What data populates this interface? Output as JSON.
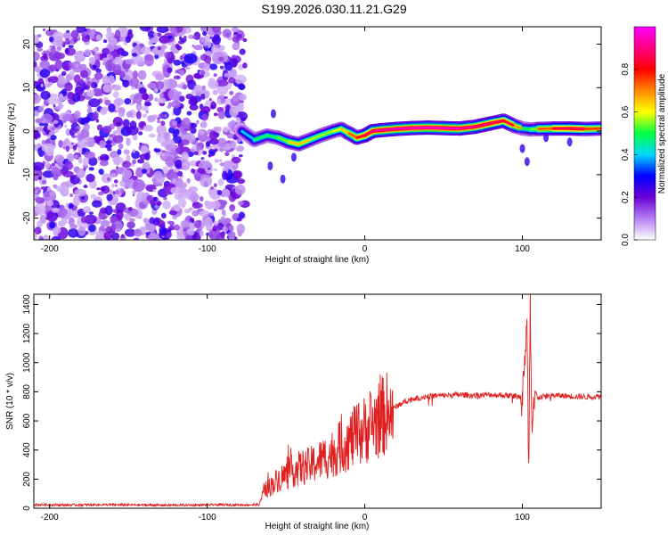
{
  "title": "S199.2026.030.11.21.G29",
  "chart_data": [
    {
      "type": "heatmap",
      "title": "",
      "xlabel": "Height of straight line (km)",
      "ylabel": "Frequency (Hz)",
      "xlim": [
        -210,
        150
      ],
      "ylim": [
        -25,
        24
      ],
      "xticks": [
        -200,
        -100,
        0,
        100
      ],
      "yticks": [
        -20,
        -10,
        0,
        10,
        20
      ],
      "xtick_labels": [
        "-200",
        "-100",
        "0",
        "100"
      ],
      "ytick_labels": [
        "-20",
        "-10",
        "0",
        "10",
        "20"
      ],
      "noise_region_x": [
        -210,
        -76
      ],
      "ridge": {
        "x": [
          -78,
          -70,
          -62,
          -55,
          -48,
          -42,
          -35,
          -28,
          -20,
          -15,
          -10,
          -5,
          0,
          5,
          10,
          20,
          30,
          40,
          50,
          60,
          70,
          80,
          88,
          95,
          100,
          105,
          110,
          120,
          130,
          140,
          150
        ],
        "frequency": [
          0,
          -2,
          -1,
          -1.5,
          -2.5,
          -3,
          -2,
          -1,
          0,
          0.5,
          -0.5,
          -1.5,
          -1,
          0,
          0.2,
          0.5,
          0.7,
          0.8,
          0.7,
          0.6,
          1.0,
          1.8,
          2.4,
          1.2,
          0.6,
          0.4,
          0.5,
          0.6,
          0.6,
          0.5,
          0.6
        ],
        "amplitude": [
          0.3,
          0.5,
          0.5,
          0.5,
          0.6,
          0.7,
          0.6,
          0.55,
          0.6,
          0.6,
          0.7,
          0.8,
          0.85,
          0.9,
          0.95,
          0.95,
          0.97,
          0.97,
          0.97,
          0.96,
          0.92,
          0.9,
          0.85,
          0.8,
          0.6,
          0.4,
          0.7,
          0.8,
          0.9,
          0.85,
          0.7
        ]
      },
      "colorbar": {
        "label": "Normalized spectral amplitude",
        "range": [
          0.0,
          1.0
        ],
        "ticks": [
          0.0,
          0.2,
          0.4,
          0.6,
          0.8
        ],
        "tick_labels": [
          "0.0",
          "0.2",
          "0.4",
          "0.6",
          "0.8"
        ],
        "colors": [
          "#ffffff",
          "#b57ff0",
          "#6a00d8",
          "#0000ff",
          "#00d8ff",
          "#00ff40",
          "#ffff00",
          "#ff8800",
          "#ff0000",
          "#ff0080",
          "#ff00ff"
        ]
      }
    },
    {
      "type": "line",
      "title": "",
      "xlabel": "Height of straight line (km)",
      "ylabel": "SNR (10 * v/v)",
      "xlim": [
        -210,
        150
      ],
      "ylim": [
        0,
        1470
      ],
      "xticks": [
        -200,
        -100,
        0,
        100
      ],
      "yticks": [
        0,
        200,
        400,
        600,
        800,
        1000,
        1200,
        1400
      ],
      "xtick_labels": [
        "-200",
        "-100",
        "0",
        "100"
      ],
      "ytick_labels": [
        "0",
        "200",
        "400",
        "600",
        "800",
        "1000",
        "1200",
        "1400"
      ],
      "color": "#e02020",
      "series": [
        {
          "name": "SNR",
          "x": [
            -210,
            -190,
            -170,
            -150,
            -130,
            -110,
            -90,
            -75,
            -67,
            -64,
            -60,
            -55,
            -50,
            -45,
            -40,
            -35,
            -30,
            -25,
            -20,
            -15,
            -10,
            -5,
            0,
            5,
            10,
            15,
            20,
            25,
            30,
            35,
            40,
            50,
            60,
            70,
            80,
            90,
            96,
            100,
            103,
            104,
            105,
            106,
            108,
            110,
            115,
            120,
            130,
            140,
            150
          ],
          "y": [
            25,
            22,
            24,
            23,
            21,
            22,
            24,
            23,
            25,
            120,
            150,
            200,
            230,
            260,
            280,
            290,
            320,
            350,
            380,
            420,
            460,
            500,
            540,
            580,
            620,
            660,
            700,
            730,
            750,
            760,
            770,
            775,
            780,
            775,
            780,
            775,
            770,
            760,
            1300,
            200,
            1460,
            500,
            800,
            760,
            770,
            775,
            770,
            765,
            770
          ]
        }
      ]
    }
  ]
}
